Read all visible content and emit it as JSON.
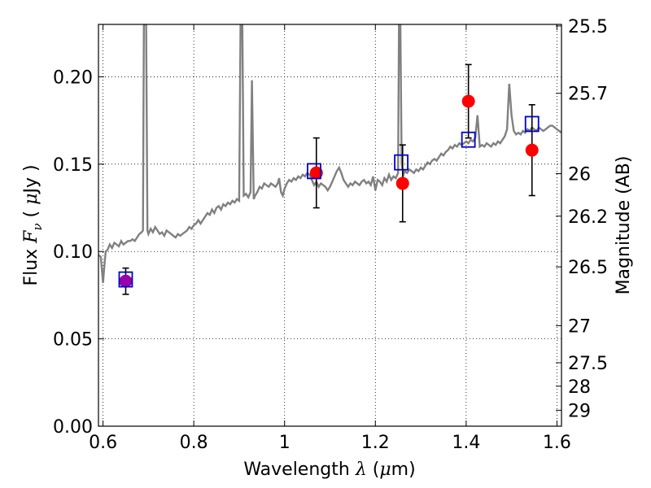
{
  "chart_data": {
    "type": "scatter",
    "xlabel": {
      "prefix": "Wavelength ",
      "symbol": "λ",
      "suffix": " (",
      "mu": "μ",
      "unit": "m)"
    },
    "ylabel": {
      "prefix": "Flux ",
      "symbol": "F",
      "sub": "ν",
      "suffix": " ( ",
      "mu": "μ",
      "unit": "Jy )"
    },
    "y2label": "Magnitude (AB)",
    "xlim": [
      0.59,
      1.61
    ],
    "ylim": [
      0.0,
      0.23
    ],
    "grid": true,
    "x_ticks": [
      {
        "v": 0.6,
        "label": "0.6"
      },
      {
        "v": 0.8,
        "label": "0.8"
      },
      {
        "v": 1.0,
        "label": "1"
      },
      {
        "v": 1.2,
        "label": "1.2"
      },
      {
        "v": 1.4,
        "label": "1.4"
      },
      {
        "v": 1.6,
        "label": "1.6"
      }
    ],
    "y_ticks": [
      {
        "v": 0.0,
        "label": "0.00"
      },
      {
        "v": 0.05,
        "label": "0.05"
      },
      {
        "v": 0.1,
        "label": "0.10"
      },
      {
        "v": 0.15,
        "label": "0.15"
      },
      {
        "v": 0.2,
        "label": "0.20"
      }
    ],
    "mag_ticks": [
      {
        "v": 25.5,
        "label": "25.5"
      },
      {
        "v": 25.7,
        "label": "25.7"
      },
      {
        "v": 26.0,
        "label": "26"
      },
      {
        "v": 26.2,
        "label": "26.2"
      },
      {
        "v": 26.5,
        "label": "26.5"
      },
      {
        "v": 27.0,
        "label": "27"
      },
      {
        "v": 27.5,
        "label": "27.5"
      },
      {
        "v": 28.0,
        "label": "28"
      },
      {
        "v": 29.0,
        "label": "29"
      }
    ],
    "observed": [
      {
        "x": 0.65,
        "y": 0.083,
        "err": 0.0075,
        "color": "#9900aa"
      },
      {
        "x": 1.07,
        "y": 0.145,
        "err": 0.02,
        "color": "#ff0000"
      },
      {
        "x": 1.26,
        "y": 0.139,
        "err": 0.022,
        "color": "#ff0000"
      },
      {
        "x": 1.405,
        "y": 0.186,
        "err": 0.021,
        "color": "#ff0000"
      },
      {
        "x": 1.545,
        "y": 0.158,
        "err": 0.026,
        "color": "#ff0000"
      }
    ],
    "model_points": [
      {
        "x": 0.65,
        "y": 0.084
      },
      {
        "x": 1.065,
        "y": 0.146
      },
      {
        "x": 1.257,
        "y": 0.151
      },
      {
        "x": 1.405,
        "y": 0.164
      },
      {
        "x": 1.545,
        "y": 0.173
      }
    ],
    "spectrum": [
      [
        0.59,
        0.098
      ],
      [
        0.595,
        0.097
      ],
      [
        0.598,
        0.088
      ],
      [
        0.6,
        0.082
      ],
      [
        0.603,
        0.092
      ],
      [
        0.606,
        0.1
      ],
      [
        0.61,
        0.101
      ],
      [
        0.615,
        0.104
      ],
      [
        0.62,
        0.102
      ],
      [
        0.625,
        0.105
      ],
      [
        0.63,
        0.104
      ],
      [
        0.635,
        0.103
      ],
      [
        0.64,
        0.106
      ],
      [
        0.645,
        0.104
      ],
      [
        0.65,
        0.105
      ],
      [
        0.655,
        0.106
      ],
      [
        0.66,
        0.106
      ],
      [
        0.665,
        0.107
      ],
      [
        0.67,
        0.106
      ],
      [
        0.675,
        0.108
      ],
      [
        0.68,
        0.11
      ],
      [
        0.685,
        0.111
      ],
      [
        0.688,
        0.112
      ],
      [
        0.69,
        0.23
      ],
      [
        0.695,
        0.23
      ],
      [
        0.698,
        0.112
      ],
      [
        0.7,
        0.11
      ],
      [
        0.705,
        0.113
      ],
      [
        0.71,
        0.111
      ],
      [
        0.715,
        0.114
      ],
      [
        0.72,
        0.112
      ],
      [
        0.725,
        0.11
      ],
      [
        0.73,
        0.111
      ],
      [
        0.735,
        0.109
      ],
      [
        0.74,
        0.112
      ],
      [
        0.745,
        0.111
      ],
      [
        0.75,
        0.11
      ],
      [
        0.755,
        0.109
      ],
      [
        0.76,
        0.108
      ],
      [
        0.765,
        0.11
      ],
      [
        0.77,
        0.109
      ],
      [
        0.775,
        0.11
      ],
      [
        0.78,
        0.111
      ],
      [
        0.785,
        0.112
      ],
      [
        0.79,
        0.114
      ],
      [
        0.795,
        0.113
      ],
      [
        0.8,
        0.115
      ],
      [
        0.805,
        0.116
      ],
      [
        0.81,
        0.118
      ],
      [
        0.815,
        0.116
      ],
      [
        0.82,
        0.118
      ],
      [
        0.825,
        0.12
      ],
      [
        0.83,
        0.122
      ],
      [
        0.835,
        0.121
      ],
      [
        0.84,
        0.124
      ],
      [
        0.845,
        0.122
      ],
      [
        0.85,
        0.125
      ],
      [
        0.855,
        0.126
      ],
      [
        0.86,
        0.124
      ],
      [
        0.865,
        0.127
      ],
      [
        0.87,
        0.126
      ],
      [
        0.875,
        0.128
      ],
      [
        0.88,
        0.127
      ],
      [
        0.885,
        0.129
      ],
      [
        0.89,
        0.128
      ],
      [
        0.895,
        0.13
      ],
      [
        0.9,
        0.129
      ],
      [
        0.903,
        0.23
      ],
      [
        0.907,
        0.23
      ],
      [
        0.91,
        0.132
      ],
      [
        0.915,
        0.133
      ],
      [
        0.92,
        0.131
      ],
      [
        0.925,
        0.134
      ],
      [
        0.928,
        0.198
      ],
      [
        0.932,
        0.13
      ],
      [
        0.935,
        0.132
      ],
      [
        0.94,
        0.134
      ],
      [
        0.945,
        0.137
      ],
      [
        0.95,
        0.136
      ],
      [
        0.955,
        0.139
      ],
      [
        0.96,
        0.138
      ],
      [
        0.965,
        0.137
      ],
      [
        0.97,
        0.139
      ],
      [
        0.975,
        0.138
      ],
      [
        0.98,
        0.137
      ],
      [
        0.985,
        0.139
      ],
      [
        0.988,
        0.142
      ],
      [
        0.992,
        0.134
      ],
      [
        0.996,
        0.132
      ],
      [
        1.0,
        0.136
      ],
      [
        1.005,
        0.139
      ],
      [
        1.01,
        0.141
      ],
      [
        1.015,
        0.14
      ],
      [
        1.02,
        0.142
      ],
      [
        1.025,
        0.141
      ],
      [
        1.03,
        0.143
      ],
      [
        1.035,
        0.142
      ],
      [
        1.04,
        0.144
      ],
      [
        1.045,
        0.143
      ],
      [
        1.05,
        0.145
      ],
      [
        1.055,
        0.144
      ],
      [
        1.06,
        0.141
      ],
      [
        1.065,
        0.138
      ],
      [
        1.07,
        0.14
      ],
      [
        1.075,
        0.137
      ],
      [
        1.08,
        0.139
      ],
      [
        1.085,
        0.138
      ],
      [
        1.09,
        0.137
      ],
      [
        1.095,
        0.135
      ],
      [
        1.1,
        0.137
      ],
      [
        1.105,
        0.14
      ],
      [
        1.11,
        0.143
      ],
      [
        1.115,
        0.146
      ],
      [
        1.12,
        0.148
      ],
      [
        1.125,
        0.145
      ],
      [
        1.13,
        0.141
      ],
      [
        1.135,
        0.139
      ],
      [
        1.14,
        0.137
      ],
      [
        1.145,
        0.139
      ],
      [
        1.15,
        0.138
      ],
      [
        1.155,
        0.14
      ],
      [
        1.16,
        0.139
      ],
      [
        1.165,
        0.138
      ],
      [
        1.17,
        0.14
      ],
      [
        1.175,
        0.141
      ],
      [
        1.18,
        0.139
      ],
      [
        1.185,
        0.14
      ],
      [
        1.19,
        0.138
      ],
      [
        1.195,
        0.143
      ],
      [
        1.2,
        0.135
      ],
      [
        1.205,
        0.141
      ],
      [
        1.21,
        0.14
      ],
      [
        1.215,
        0.138
      ],
      [
        1.22,
        0.142
      ],
      [
        1.225,
        0.14
      ],
      [
        1.23,
        0.144
      ],
      [
        1.235,
        0.141
      ],
      [
        1.24,
        0.143
      ],
      [
        1.245,
        0.142
      ],
      [
        1.25,
        0.145
      ],
      [
        1.252,
        0.23
      ],
      [
        1.255,
        0.23
      ],
      [
        1.258,
        0.15
      ],
      [
        1.262,
        0.144
      ],
      [
        1.265,
        0.146
      ],
      [
        1.27,
        0.145
      ],
      [
        1.275,
        0.147
      ],
      [
        1.28,
        0.146
      ],
      [
        1.285,
        0.145
      ],
      [
        1.29,
        0.147
      ],
      [
        1.295,
        0.146
      ],
      [
        1.3,
        0.148
      ],
      [
        1.305,
        0.147
      ],
      [
        1.31,
        0.149
      ],
      [
        1.315,
        0.151
      ],
      [
        1.32,
        0.15
      ],
      [
        1.325,
        0.152
      ],
      [
        1.33,
        0.153
      ],
      [
        1.335,
        0.152
      ],
      [
        1.34,
        0.154
      ],
      [
        1.345,
        0.156
      ],
      [
        1.35,
        0.155
      ],
      [
        1.355,
        0.157
      ],
      [
        1.36,
        0.158
      ],
      [
        1.365,
        0.16
      ],
      [
        1.37,
        0.159
      ],
      [
        1.375,
        0.161
      ],
      [
        1.38,
        0.16
      ],
      [
        1.385,
        0.162
      ],
      [
        1.39,
        0.161
      ],
      [
        1.395,
        0.162
      ],
      [
        1.4,
        0.163
      ],
      [
        1.405,
        0.162
      ],
      [
        1.41,
        0.164
      ],
      [
        1.415,
        0.163
      ],
      [
        1.42,
        0.165
      ],
      [
        1.425,
        0.178
      ],
      [
        1.43,
        0.16
      ],
      [
        1.435,
        0.161
      ],
      [
        1.44,
        0.16
      ],
      [
        1.445,
        0.162
      ],
      [
        1.45,
        0.161
      ],
      [
        1.455,
        0.16
      ],
      [
        1.46,
        0.162
      ],
      [
        1.465,
        0.161
      ],
      [
        1.47,
        0.163
      ],
      [
        1.475,
        0.162
      ],
      [
        1.48,
        0.164
      ],
      [
        1.485,
        0.166
      ],
      [
        1.49,
        0.17
      ],
      [
        1.495,
        0.196
      ],
      [
        1.5,
        0.178
      ],
      [
        1.505,
        0.169
      ],
      [
        1.51,
        0.167
      ],
      [
        1.515,
        0.168
      ],
      [
        1.52,
        0.167
      ],
      [
        1.525,
        0.169
      ],
      [
        1.53,
        0.168
      ],
      [
        1.535,
        0.17
      ],
      [
        1.54,
        0.169
      ],
      [
        1.545,
        0.171
      ],
      [
        1.55,
        0.17
      ],
      [
        1.555,
        0.169
      ],
      [
        1.56,
        0.171
      ],
      [
        1.565,
        0.17
      ],
      [
        1.57,
        0.169
      ],
      [
        1.575,
        0.17
      ],
      [
        1.58,
        0.171
      ],
      [
        1.585,
        0.172
      ],
      [
        1.59,
        0.172
      ],
      [
        1.595,
        0.171
      ],
      [
        1.6,
        0.17
      ],
      [
        1.605,
        0.169
      ],
      [
        1.61,
        0.168
      ]
    ],
    "colors": {
      "spectrum": "#808080",
      "model_box": "#0000cc",
      "observed": "#ff0000",
      "first_point": "#9900aa",
      "errorbar": "#000000",
      "grid": "#000000"
    }
  }
}
